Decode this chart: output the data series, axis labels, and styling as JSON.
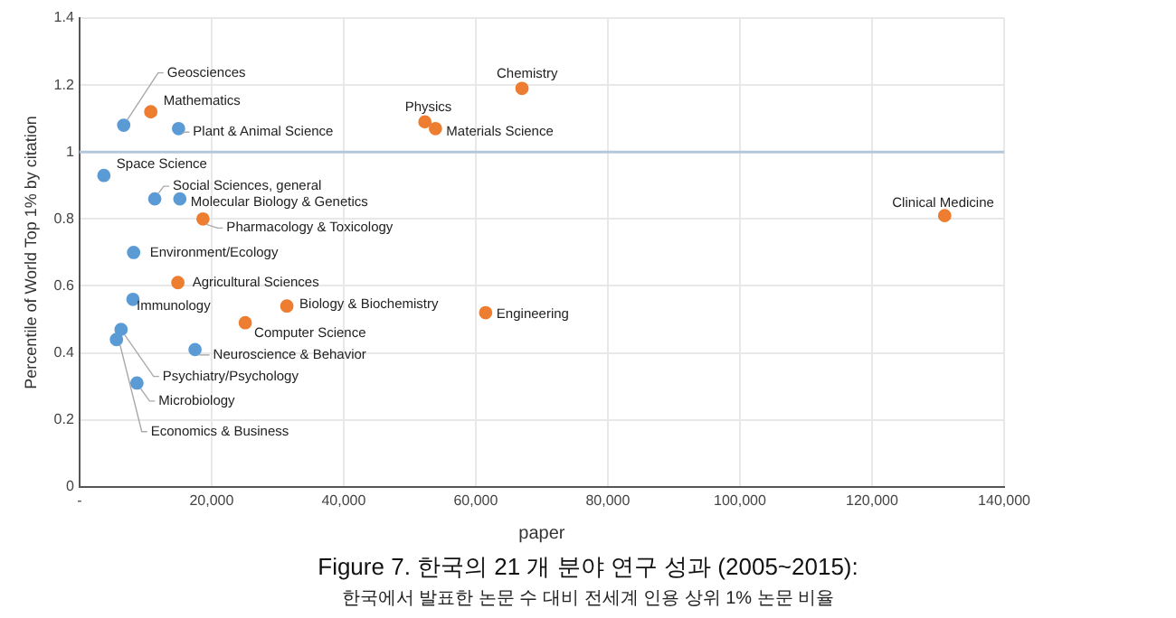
{
  "chart_data": {
    "type": "scatter",
    "title": "Figure 7. 한국의 21 개 분야 연구 성과 (2005~2015):",
    "subtitle": "한국에서 발표한 논문 수 대비 전세계 인용 상위 1% 논문 비율",
    "xlabel": "paper",
    "ylabel": "Percentile of World Top 1% by citation",
    "series": [
      {
        "color": "#5b9bd5",
        "x": [
          6700,
          15000,
          3700,
          11400,
          15200,
          8200,
          8100,
          17500,
          6300,
          5600,
          8700
        ],
        "values": [
          1.08,
          1.07,
          0.93,
          0.86,
          0.86,
          0.7,
          0.56,
          0.41,
          0.47,
          0.44,
          0.31
        ]
      },
      {
        "color": "#ed7d31",
        "x": [
          10800,
          52300,
          53900,
          67000,
          131000,
          18700,
          14900,
          31400,
          25100,
          61500
        ],
        "values": [
          1.12,
          1.09,
          1.07,
          1.19,
          0.81,
          0.8,
          0.61,
          0.54,
          0.49,
          0.52
        ]
      }
    ],
    "annotations": [
      {
        "text": "Geosciences",
        "x": 6700,
        "y": 1.08
      },
      {
        "text": "Plant & Animal Science",
        "x": 15000,
        "y": 1.07
      },
      {
        "text": "Space Science",
        "x": 3700,
        "y": 0.93
      },
      {
        "text": "Social Sciences, general",
        "x": 11400,
        "y": 0.86
      },
      {
        "text": "Molecular Biology & Genetics",
        "x": 15200,
        "y": 0.86
      },
      {
        "text": "Environment/Ecology",
        "x": 8200,
        "y": 0.7
      },
      {
        "text": "Immunology",
        "x": 8100,
        "y": 0.56
      },
      {
        "text": "Neuroscience & Behavior",
        "x": 17500,
        "y": 0.41
      },
      {
        "text": "Psychiatry/Psychology",
        "x": 6300,
        "y": 0.47
      },
      {
        "text": "Economics & Business",
        "x": 5600,
        "y": 0.44
      },
      {
        "text": "Microbiology",
        "x": 8700,
        "y": 0.31
      },
      {
        "text": "Mathematics",
        "x": 10800,
        "y": 1.12
      },
      {
        "text": "Physics",
        "x": 52300,
        "y": 1.09
      },
      {
        "text": "Materials Science",
        "x": 53900,
        "y": 1.07
      },
      {
        "text": "Chemistry",
        "x": 67000,
        "y": 1.19
      },
      {
        "text": "Clinical Medicine",
        "x": 131000,
        "y": 0.81
      },
      {
        "text": "Pharmacology & Toxicology",
        "x": 18700,
        "y": 0.8
      },
      {
        "text": "Agricultural Sciences",
        "x": 14900,
        "y": 0.61
      },
      {
        "text": "Biology & Biochemistry",
        "x": 31400,
        "y": 0.54
      },
      {
        "text": "Computer Science",
        "x": 25100,
        "y": 0.49
      },
      {
        "text": "Engineering",
        "x": 61500,
        "y": 0.52
      }
    ],
    "ref_lines": [
      {
        "axis": "y",
        "value": 1,
        "color": "#b4c7dc"
      }
    ],
    "xlim": [
      0,
      140000
    ],
    "xticks": [
      {
        "value": 0,
        "label": "-"
      },
      {
        "value": 20000,
        "label": "20,000"
      },
      {
        "value": 40000,
        "label": "40,000"
      },
      {
        "value": 60000,
        "label": "60,000"
      },
      {
        "value": 80000,
        "label": "80,000"
      },
      {
        "value": 100000,
        "label": "100,000"
      },
      {
        "value": 120000,
        "label": "120,000"
      },
      {
        "value": 140000,
        "label": "140,000"
      }
    ],
    "ylim": [
      0,
      1.4
    ],
    "yticks": [
      0,
      0.2,
      0.4,
      0.6,
      0.8,
      1,
      1.2,
      1.4
    ],
    "grid": true,
    "legend": false,
    "marker": "circle"
  }
}
